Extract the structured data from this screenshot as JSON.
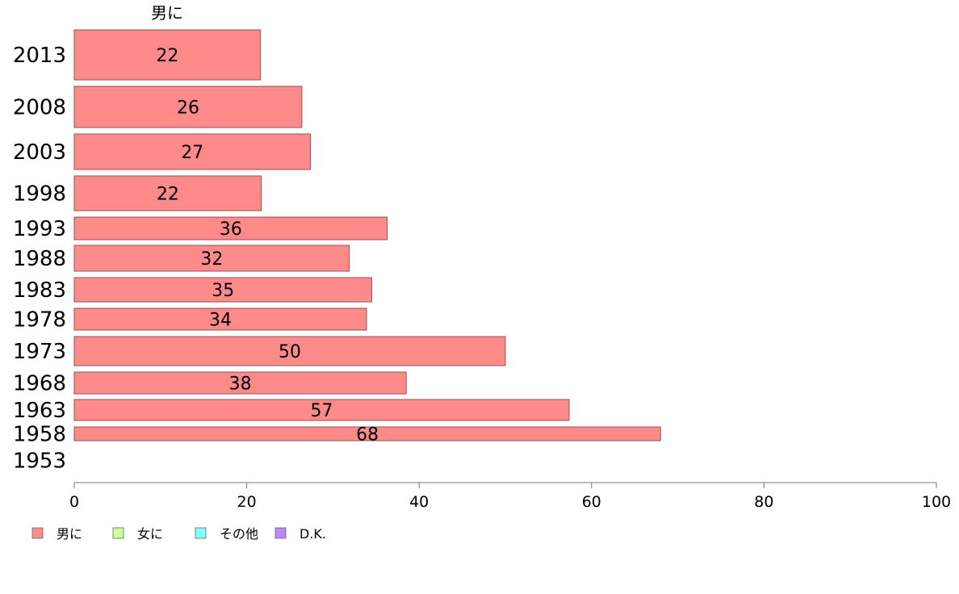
{
  "chart_data": {
    "type": "bar",
    "orientation": "horizontal",
    "column_header": "男に",
    "categories": [
      "2013",
      "2008",
      "2003",
      "1998",
      "1993",
      "1988",
      "1983",
      "1978",
      "1973",
      "1968",
      "1963",
      "1958",
      "1953"
    ],
    "series": [
      {
        "name": "男に",
        "color": "#ff8a8a",
        "values": [
          21.6,
          26.4,
          27.4,
          21.7,
          36.3,
          31.9,
          34.5,
          33.9,
          50.0,
          38.5,
          57.4,
          68.0,
          null
        ],
        "labels": [
          "22",
          "26",
          "27",
          "22",
          "36",
          "32",
          "35",
          "34",
          "50",
          "38",
          "57",
          "68",
          ""
        ]
      }
    ],
    "xlim": [
      0,
      100
    ],
    "x_ticks": [
      "0",
      "20",
      "40",
      "60",
      "80",
      "100"
    ],
    "legend": [
      {
        "label": "男に",
        "color": "#ff8a8a"
      },
      {
        "label": "女に",
        "color": "#ccff99"
      },
      {
        "label": "その他",
        "color": "#88ffff"
      },
      {
        "label": "D.K.",
        "color": "#bb88ff"
      }
    ],
    "legend_position": "bottom-left",
    "grid": false
  }
}
